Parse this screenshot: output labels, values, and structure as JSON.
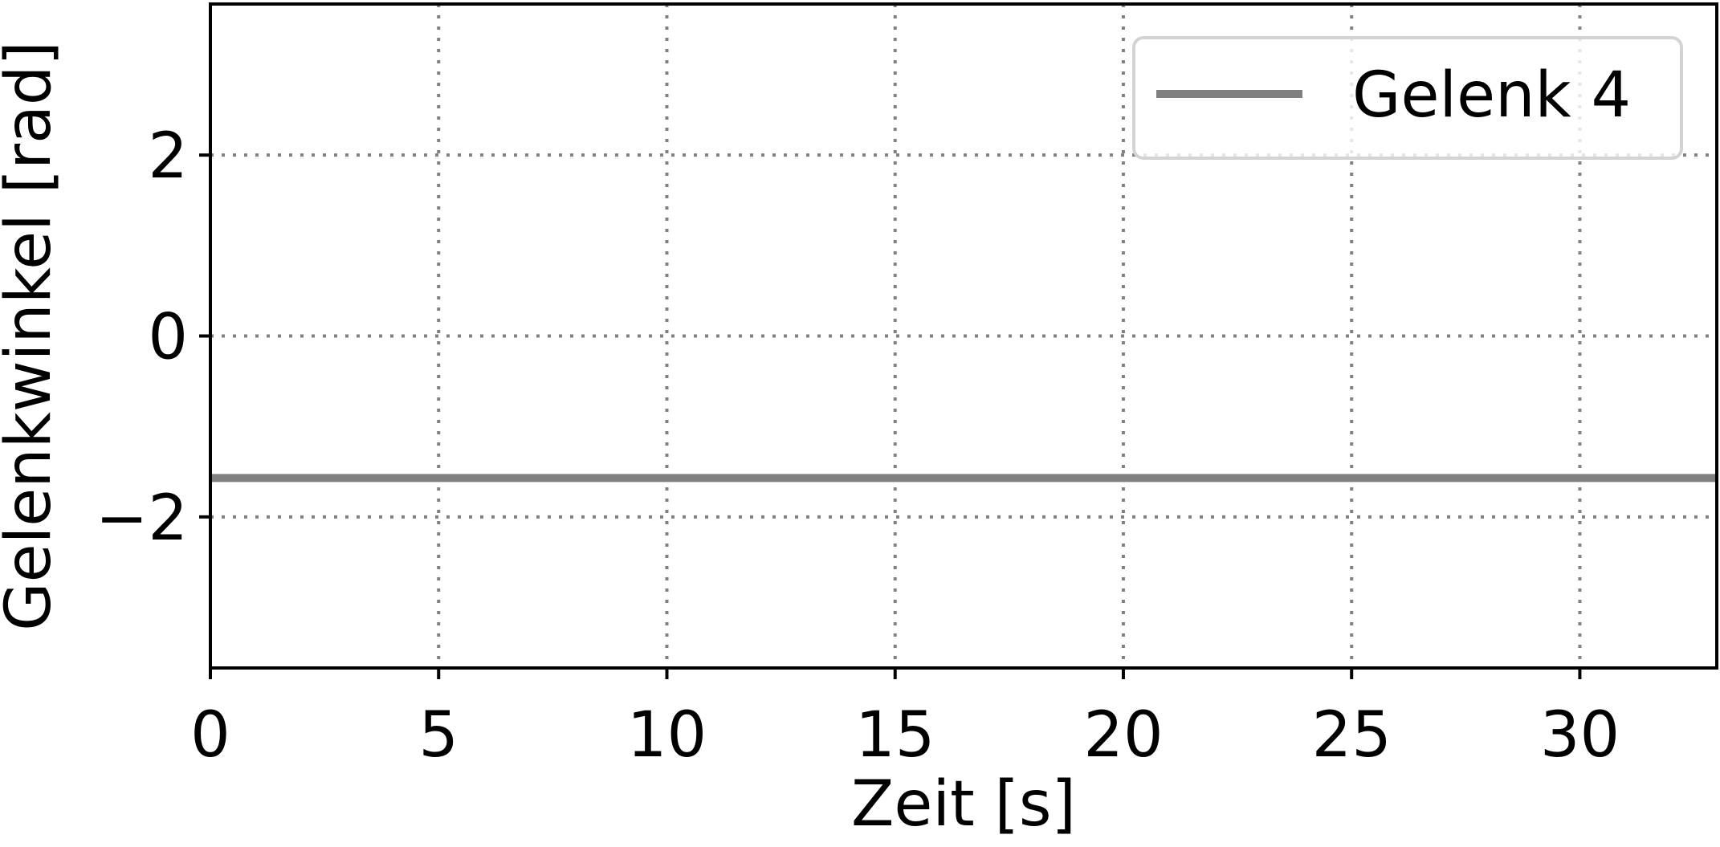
{
  "chart_data": {
    "type": "line",
    "title": "",
    "xlabel": "Zeit [s]",
    "ylabel": "Gelenkwinkel [rad]",
    "xlim": [
      0,
      33
    ],
    "ylim": [
      -3.67,
      3.67
    ],
    "xticks": [
      0,
      5,
      10,
      15,
      20,
      25,
      30
    ],
    "yticks": [
      -2,
      0,
      2
    ],
    "xtick_labels": [
      "0",
      "5",
      "10",
      "15",
      "20",
      "25",
      "30"
    ],
    "ytick_labels": [
      "−2",
      "0",
      "2"
    ],
    "grid": true,
    "grid_style": "dotted",
    "legend_position": "top-right",
    "series": [
      {
        "name": "Gelenk 4",
        "color": "#808080",
        "x": [
          0,
          33
        ],
        "y": [
          -1.57,
          -1.57
        ]
      }
    ]
  },
  "colors": {
    "frame": "#000000",
    "grid": "#808080",
    "background": "#ffffff",
    "legend_border": "#d3d3d3"
  }
}
